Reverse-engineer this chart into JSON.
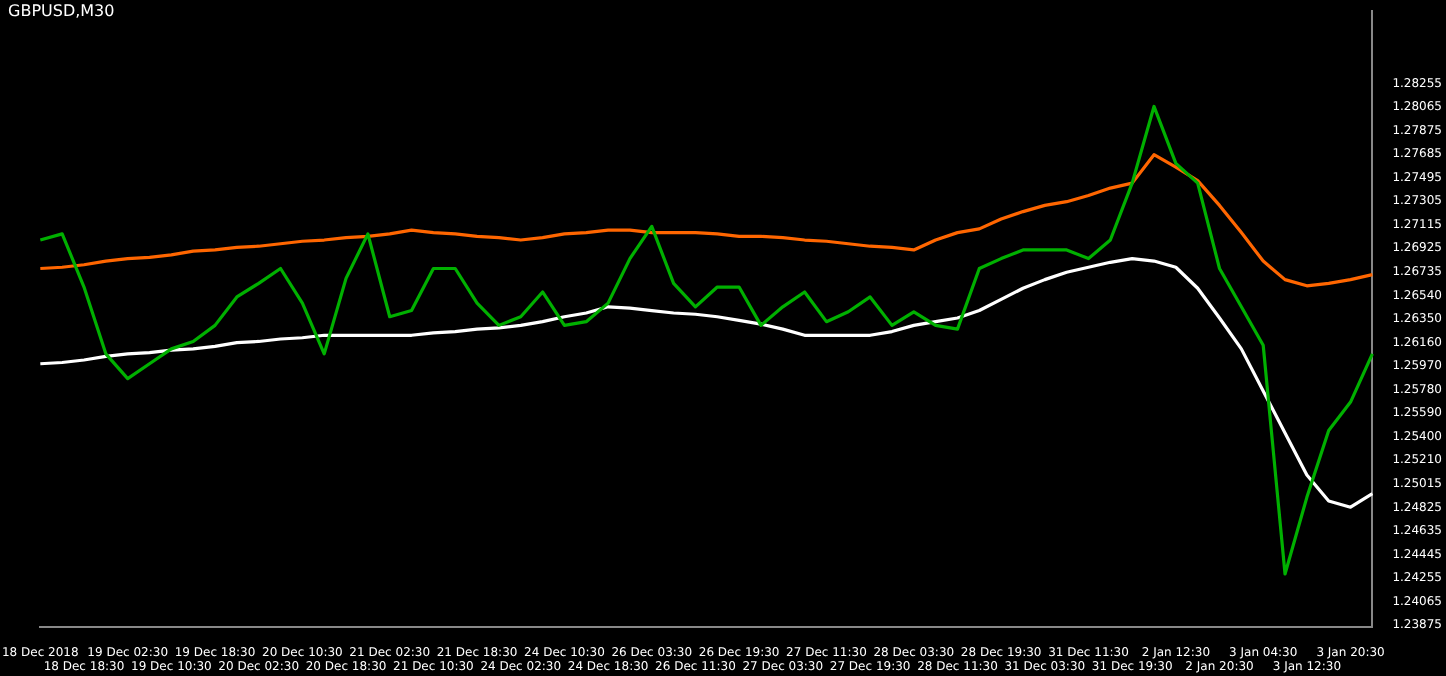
{
  "chart_data": {
    "type": "line",
    "title": "GBPUSD,M30",
    "categories": [
      "18 Dec 2018",
      null,
      "18 Dec 18:30",
      null,
      "19 Dec 02:30",
      null,
      "19 Dec 10:30",
      null,
      "19 Dec 18:30",
      null,
      "20 Dec 02:30",
      null,
      "20 Dec 10:30",
      null,
      "20 Dec 18:30",
      null,
      "21 Dec 02:30",
      null,
      "21 Dec 10:30",
      null,
      "21 Dec 18:30",
      null,
      "24 Dec 02:30",
      null,
      "24 Dec 10:30",
      null,
      "24 Dec 18:30",
      null,
      "26 Dec 03:30",
      null,
      "26 Dec 11:30",
      null,
      "26 Dec 19:30",
      null,
      "27 Dec 03:30",
      null,
      "27 Dec 11:30",
      null,
      "27 Dec 19:30",
      null,
      "28 Dec 03:30",
      null,
      "28 Dec 11:30",
      null,
      "28 Dec 19:30",
      null,
      "31 Dec 03:30",
      null,
      "31 Dec 11:30",
      null,
      "31 Dec 19:30",
      null,
      "2 Jan 12:30",
      null,
      "2 Jan 20:30",
      null,
      "3 Jan 04:30",
      null,
      "3 Jan 12:30",
      null,
      "3 Jan 20:30",
      null
    ],
    "series": [
      {
        "color": "#00b000",
        "values": [
          1.2699,
          1.2704,
          1.2661,
          1.2607,
          1.2587,
          1.2599,
          1.2611,
          1.2617,
          1.263,
          1.2653,
          1.2664,
          1.2676,
          1.2648,
          1.2607,
          1.2668,
          1.2704,
          1.2637,
          1.2642,
          1.2676,
          1.2676,
          1.2648,
          1.263,
          1.2637,
          1.2657,
          1.263,
          1.2633,
          1.2648,
          1.2684,
          1.271,
          1.2664,
          1.2645,
          1.2661,
          1.2661,
          1.263,
          1.2645,
          1.2657,
          1.2633,
          1.2641,
          1.2653,
          1.263,
          1.2641,
          1.263,
          1.2627,
          1.2676,
          1.2684,
          1.2691,
          1.2691,
          1.2691,
          1.2684,
          1.2699,
          1.2745,
          1.2807,
          1.2761,
          1.2745,
          1.2676,
          1.2645,
          1.2614,
          1.2429,
          1.2491,
          1.2545,
          1.2568,
          1.2607
        ]
      },
      {
        "color": "#ff6600",
        "values": [
          1.2676,
          1.2677,
          1.2679,
          1.2682,
          1.2684,
          1.2685,
          1.2687,
          1.269,
          1.2691,
          1.2693,
          1.2694,
          1.2696,
          1.2698,
          1.2699,
          1.2701,
          1.2702,
          1.2704,
          1.2707,
          1.2705,
          1.2704,
          1.2702,
          1.2701,
          1.2699,
          1.2701,
          1.2704,
          1.2705,
          1.2707,
          1.2707,
          1.2705,
          1.2705,
          1.2705,
          1.2704,
          1.2702,
          1.2702,
          1.2701,
          1.2699,
          1.2698,
          1.2696,
          1.2694,
          1.2693,
          1.2691,
          1.2699,
          1.2705,
          1.2708,
          1.2716,
          1.2722,
          1.2727,
          1.273,
          1.2735,
          1.2741,
          1.2745,
          1.2768,
          1.2758,
          1.2747,
          1.2727,
          1.2705,
          1.2682,
          1.2667,
          1.2662,
          1.2664,
          1.2667,
          1.2671
        ]
      },
      {
        "color": "#ffffff",
        "values": [
          1.2599,
          1.26,
          1.2602,
          1.2605,
          1.2607,
          1.2608,
          1.261,
          1.2611,
          1.2613,
          1.2616,
          1.2617,
          1.2619,
          1.262,
          1.2622,
          1.2622,
          1.2622,
          1.2622,
          1.2622,
          1.2624,
          1.2625,
          1.2627,
          1.2628,
          1.263,
          1.2633,
          1.2637,
          1.264,
          1.2645,
          1.2644,
          1.2642,
          1.264,
          1.2639,
          1.2637,
          1.2634,
          1.2631,
          1.2627,
          1.2622,
          1.2622,
          1.2622,
          1.2622,
          1.2625,
          1.263,
          1.2633,
          1.2636,
          1.2642,
          1.2651,
          1.266,
          1.2667,
          1.2673,
          1.2677,
          1.2681,
          1.2684,
          1.2682,
          1.2677,
          1.266,
          1.2636,
          1.2611,
          1.2577,
          1.2543,
          1.2509,
          1.2488,
          1.2483,
          1.2494
        ]
      }
    ],
    "ylim": [
      1.2386,
      1.2884
    ],
    "yticks": [
      1.23875,
      1.24065,
      1.24255,
      1.24445,
      1.24635,
      1.24825,
      1.25015,
      {
        "value": 1.2521,
        "label": "1.25210"
      },
      {
        "value": 1.254,
        "label": "1.25400"
      },
      {
        "value": 1.2559,
        "label": "1.25590"
      },
      {
        "value": 1.2578,
        "label": "1.25780"
      },
      {
        "value": 1.2597,
        "label": "1.25970"
      },
      {
        "value": 1.2616,
        "label": "1.26160"
      },
      {
        "value": 1.2635,
        "label": "1.26350"
      },
      {
        "value": 1.2654,
        "label": "1.26540"
      },
      1.26735,
      1.26925,
      1.27115,
      1.27305,
      1.27495,
      1.27685,
      1.27875,
      1.28065,
      1.28255
    ],
    "grid": false,
    "legend": false,
    "marker": "none",
    "line_style": "solid"
  }
}
